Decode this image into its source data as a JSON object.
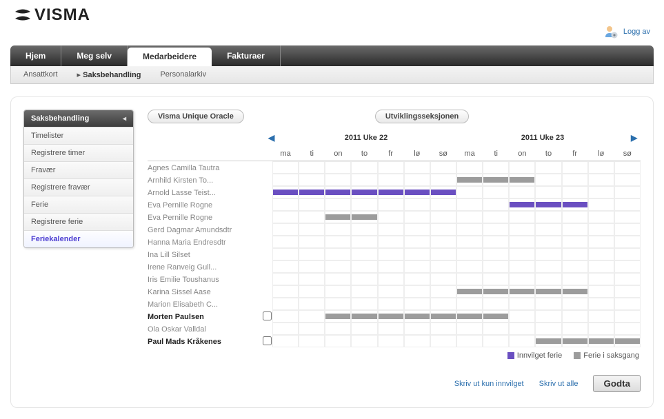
{
  "brand": "VISMA",
  "logout_label": "Logg av",
  "nav": {
    "items": [
      {
        "label": "Hjem",
        "active": false
      },
      {
        "label": "Meg selv",
        "active": false
      },
      {
        "label": "Medarbeidere",
        "active": true
      },
      {
        "label": "Fakturaer",
        "active": false
      }
    ],
    "sub": [
      {
        "label": "Ansattkort",
        "current": false
      },
      {
        "label": "Saksbehandling",
        "current": true
      },
      {
        "label": "Personalarkiv",
        "current": false
      }
    ]
  },
  "side": {
    "title": "Saksbehandling",
    "items": [
      {
        "label": "Timelister",
        "active": false
      },
      {
        "label": "Registrere timer",
        "active": false
      },
      {
        "label": "Fravær",
        "active": false
      },
      {
        "label": "Registrere fravær",
        "active": false
      },
      {
        "label": "Ferie",
        "active": false
      },
      {
        "label": "Registrere ferie",
        "active": false
      },
      {
        "label": "Feriekalender",
        "active": true
      }
    ]
  },
  "pills": {
    "org": "Visma Unique Oracle",
    "dept": "Utviklingsseksjonen"
  },
  "weeks": {
    "left": "2011 Uke 22",
    "right": "2011 Uke 23",
    "days": [
      "ma",
      "ti",
      "on",
      "to",
      "fr",
      "lø",
      "sø",
      "ma",
      "ti",
      "on",
      "to",
      "fr",
      "lø",
      "sø"
    ]
  },
  "colors": {
    "approved": "#6a4fc1",
    "pending": "#9c9c9c"
  },
  "people": [
    {
      "name": "Agnes Camilla Tautra",
      "self": false,
      "checkbox": false,
      "bars": []
    },
    {
      "name": "Arnhild Kirsten To...",
      "self": false,
      "checkbox": false,
      "bars": [
        {
          "from": 7,
          "to": 9,
          "type": "pending"
        }
      ]
    },
    {
      "name": "Arnold Lasse Teist...",
      "self": false,
      "checkbox": false,
      "bars": [
        {
          "from": 0,
          "to": 6,
          "type": "approved"
        }
      ]
    },
    {
      "name": "Eva Pernille Rogne",
      "self": false,
      "checkbox": false,
      "bars": [
        {
          "from": 9,
          "to": 11,
          "type": "approved"
        }
      ]
    },
    {
      "name": "Eva Pernille Rogne",
      "self": false,
      "checkbox": false,
      "bars": [
        {
          "from": 2,
          "to": 3,
          "type": "pending"
        }
      ]
    },
    {
      "name": "Gerd Dagmar Amundsdtr",
      "self": false,
      "checkbox": false,
      "bars": []
    },
    {
      "name": "Hanna Maria Endresdtr",
      "self": false,
      "checkbox": false,
      "bars": []
    },
    {
      "name": "Ina Lill Silset",
      "self": false,
      "checkbox": false,
      "bars": []
    },
    {
      "name": "Irene Ranveig Gull...",
      "self": false,
      "checkbox": false,
      "bars": []
    },
    {
      "name": "Iris Emilie Toushanus",
      "self": false,
      "checkbox": false,
      "bars": []
    },
    {
      "name": "Karina Sissel Aase",
      "self": false,
      "checkbox": false,
      "bars": [
        {
          "from": 7,
          "to": 11,
          "type": "pending"
        }
      ]
    },
    {
      "name": "Marion Elisabeth C...",
      "self": false,
      "checkbox": false,
      "bars": []
    },
    {
      "name": "Morten Paulsen",
      "self": true,
      "checkbox": true,
      "bars": [
        {
          "from": 2,
          "to": 8,
          "type": "pending"
        }
      ]
    },
    {
      "name": "Ola Oskar Valldal",
      "self": false,
      "checkbox": false,
      "bars": []
    },
    {
      "name": "Paul Mads Kråkenes",
      "self": true,
      "checkbox": true,
      "bars": [
        {
          "from": 10,
          "to": 13,
          "type": "pending"
        }
      ]
    }
  ],
  "legend": {
    "approved": "Innvilget ferie",
    "pending": "Ferie i saksgang"
  },
  "actions": {
    "print_approved": "Skriv ut kun innvilget",
    "print_all": "Skriv ut alle",
    "accept": "Godta"
  }
}
